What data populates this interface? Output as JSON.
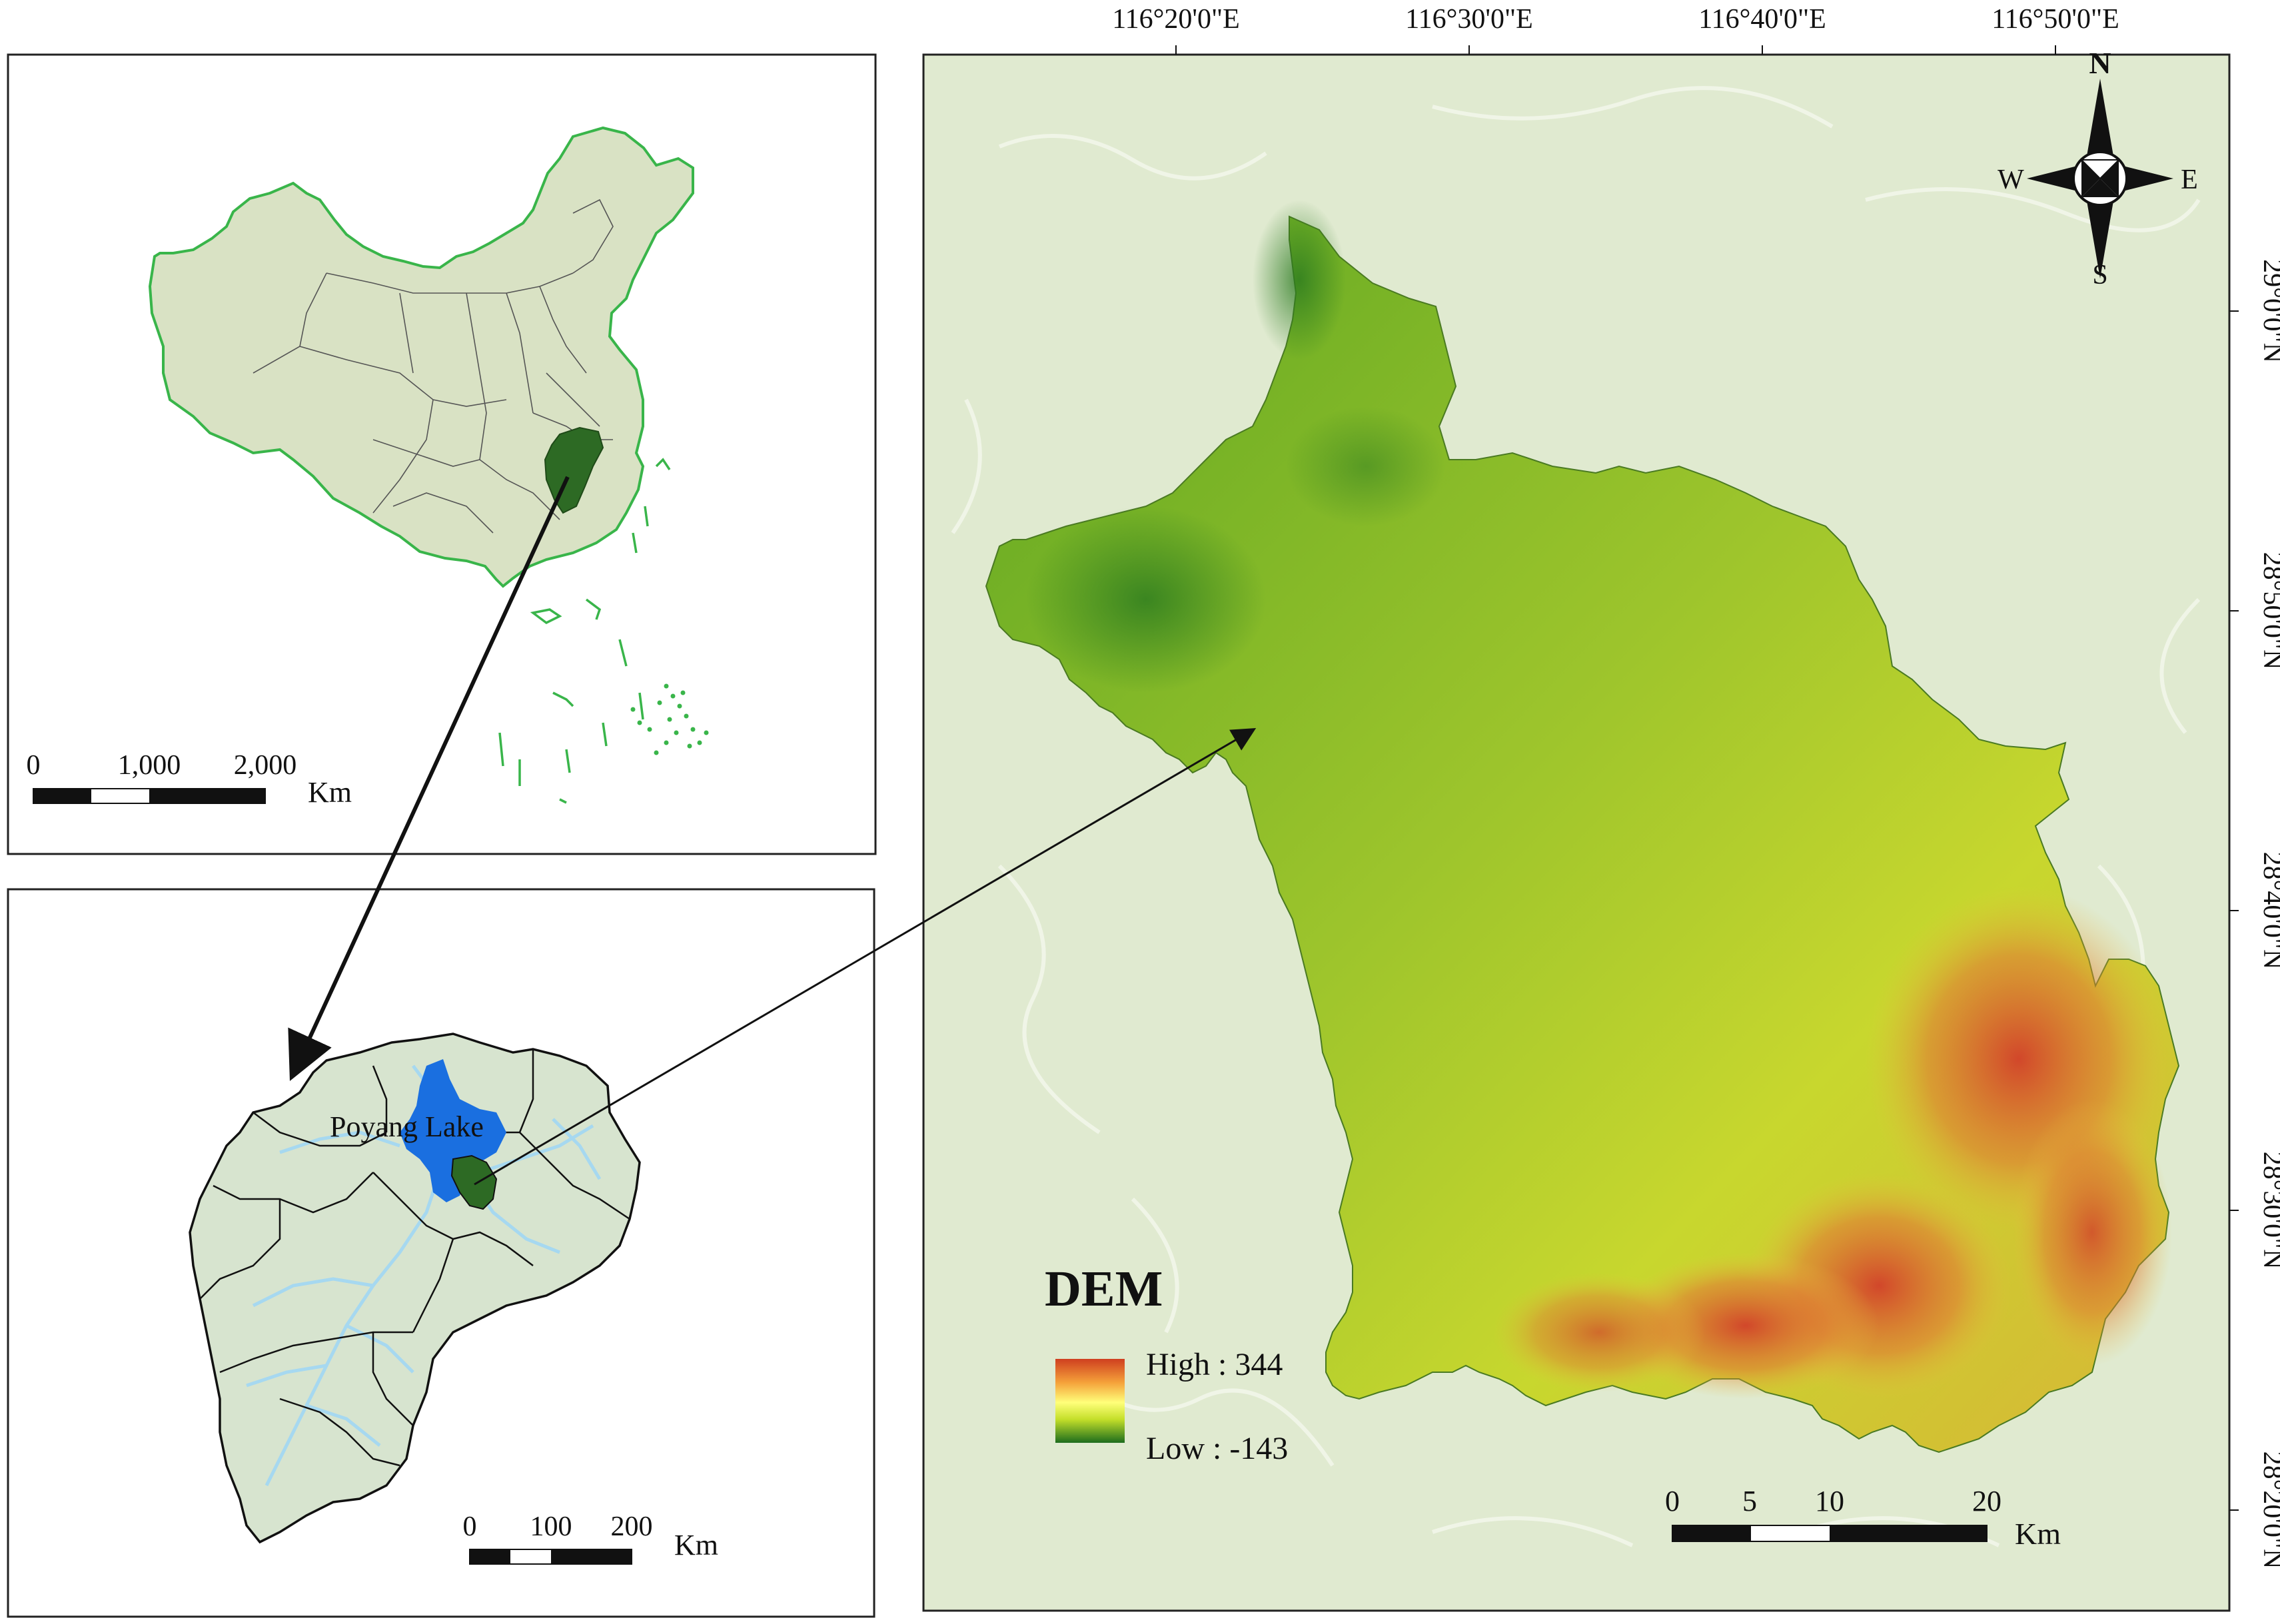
{
  "china_panel": {
    "scale_ticks": [
      "0",
      "1,000",
      "2,000"
    ],
    "scale_unit": "Km"
  },
  "jiangxi_panel": {
    "lake_label": "Poyang Lake",
    "scale_ticks": [
      "0",
      "100",
      "200"
    ],
    "scale_unit": "Km"
  },
  "dem_panel": {
    "top_ticks": [
      "116°20'0\"E",
      "116°30'0\"E",
      "116°40'0\"E",
      "116°50'0\"E"
    ],
    "right_ticks": [
      "29°0'0\"N",
      "28°50'0\"N",
      "28°40'0\"N",
      "28°30'0\"N",
      "28°20'0\"N"
    ],
    "compass": {
      "n": "N",
      "s": "S",
      "w": "W",
      "e": "E"
    },
    "legend": {
      "title": "DEM",
      "high_label": "High : 344",
      "low_label": "Low : -143",
      "colors": [
        "#cf3f1f",
        "#f5a13a",
        "#ffff7a",
        "#c4df2a",
        "#1d6d1d"
      ]
    },
    "scale_ticks": [
      "0",
      "5",
      "10",
      "20"
    ],
    "scale_unit": "Km"
  },
  "colors": {
    "china_fill": "#d9e2c4",
    "china_border": "#39b54a",
    "jiangxi_highlight": "#2d6a24",
    "lake": "#1a6fe0",
    "river": "#a6d8f0",
    "background_land": "#e0ead0"
  }
}
